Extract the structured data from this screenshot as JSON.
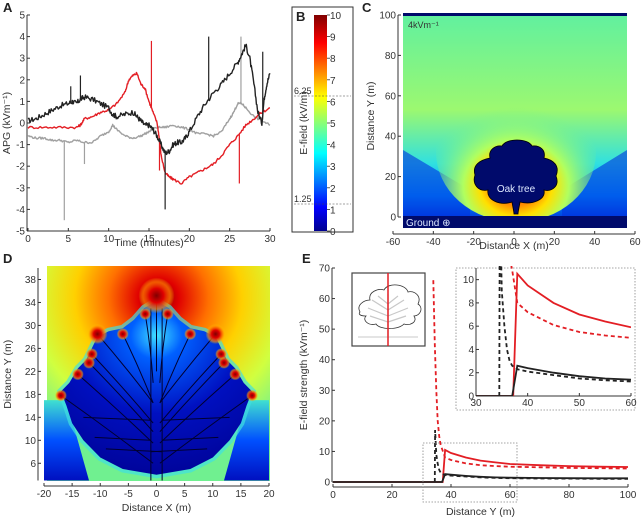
{
  "chart_data": [
    {
      "panel": "A",
      "type": "line",
      "xlabel": "Time (minutes)",
      "ylabel": "APG (kVm⁻¹)",
      "xlim": [
        0,
        30
      ],
      "ylim": [
        -5,
        5
      ],
      "xticks": [
        0,
        5,
        10,
        15,
        20,
        25,
        30
      ],
      "yticks": [
        -5,
        -4,
        -3,
        -2,
        -1,
        0,
        1,
        2,
        3,
        4,
        5
      ],
      "series": [
        {
          "name": "black",
          "color": "#222222",
          "x": [
            0,
            1,
            2,
            3,
            4,
            5,
            5.5,
            6,
            6.5,
            7,
            8,
            9,
            10,
            10.5,
            11,
            12,
            13,
            13.5,
            14,
            14.5,
            15,
            15.5,
            16,
            16.5,
            17,
            17.5,
            18,
            18.5,
            19,
            19.5,
            20,
            21,
            22,
            23,
            24,
            25,
            26,
            26.5,
            27,
            27.5,
            28,
            28.5,
            29,
            29.3,
            29.6,
            30
          ],
          "y": [
            0.1,
            0.2,
            0.4,
            0.6,
            0.8,
            0.9,
            1.0,
            0.9,
            1.1,
            1.2,
            1.1,
            0.9,
            0.7,
            0.4,
            0.3,
            0.4,
            0.5,
            0.3,
            0.1,
            -0.1,
            -0.1,
            -0.3,
            -0.6,
            -1.0,
            -1.4,
            -1.3,
            -1.0,
            -0.9,
            -0.9,
            -0.7,
            -0.4,
            0.3,
            0.9,
            1.4,
            1.8,
            2.3,
            2.8,
            3.2,
            3.6,
            3.0,
            1.8,
            0.5,
            0.0,
            1.2,
            1.8,
            2.3
          ],
          "spikes": [
            {
              "x": 5.3,
              "y": 1.7
            },
            {
              "x": 6.5,
              "y": 2.2
            },
            {
              "x": 17,
              "y": -4.0
            },
            {
              "x": 22.4,
              "y": 4.0
            },
            {
              "x": 29.1,
              "y": 3.3
            }
          ]
        },
        {
          "name": "red",
          "color": "#e31e24",
          "x": [
            0,
            2,
            4,
            6,
            6.5,
            7,
            8,
            9,
            10,
            11,
            12,
            12.5,
            13,
            13.5,
            14,
            14.5,
            15,
            15.5,
            16,
            16.2,
            16.5,
            17,
            17.5,
            18,
            19,
            20,
            21,
            22,
            23,
            24,
            25,
            26,
            27,
            28,
            29,
            30
          ],
          "y": [
            -0.2,
            -0.2,
            -0.2,
            -0.2,
            -0.1,
            0.2,
            0.3,
            0.5,
            0.6,
            0.9,
            1.4,
            2.0,
            2.2,
            2.3,
            1.8,
            1.6,
            1.0,
            0.5,
            0.0,
            -0.5,
            -1.5,
            -2.3,
            -2.5,
            -2.6,
            -2.8,
            -2.5,
            -2.3,
            -2.1,
            -1.9,
            -1.5,
            -1.0,
            -0.6,
            -0.1,
            0.2,
            0.5,
            0.7
          ],
          "spikes": [
            {
              "x": 15.3,
              "y": 3.8
            },
            {
              "x": 26.2,
              "y": -2.8
            },
            {
              "x": 16.3,
              "y": -2.2
            }
          ]
        },
        {
          "name": "gray",
          "color": "#a0a0a0",
          "x": [
            0,
            1,
            2,
            3,
            4,
            5,
            6,
            7,
            8,
            9,
            10,
            10.5,
            11,
            12,
            13,
            14,
            15,
            16,
            17,
            18,
            19,
            20,
            21,
            22,
            23,
            24,
            25,
            25.5,
            26,
            26.5,
            27,
            28,
            29,
            30
          ],
          "y": [
            -0.6,
            -0.7,
            -0.7,
            -0.8,
            -0.8,
            -0.9,
            -0.8,
            -0.9,
            -0.9,
            -0.6,
            -0.4,
            -0.1,
            -0.3,
            -0.6,
            -0.7,
            -0.6,
            -0.4,
            -0.2,
            -0.2,
            -0.1,
            -0.2,
            -0.3,
            -0.5,
            -0.5,
            -0.6,
            -0.4,
            0.2,
            0.5,
            0.9,
            0.9,
            0.7,
            0.3,
            0.1,
            -0.1
          ],
          "spikes": [
            {
              "x": 4.5,
              "y": -4.5
            },
            {
              "x": 7,
              "y": -1.9
            },
            {
              "x": 26.4,
              "y": 4.0
            }
          ]
        }
      ]
    },
    {
      "panel": "B",
      "type": "heatmap",
      "title": "",
      "ylabel": "E-field (kV/m)",
      "colorbar_range": [
        0,
        10
      ],
      "ticks": [
        0,
        1,
        2,
        3,
        4,
        5,
        6,
        7,
        8,
        9,
        10
      ],
      "annotations": [
        {
          "value": 6.25,
          "label": "6.25"
        },
        {
          "value": 1.25,
          "label": "1.25"
        }
      ]
    },
    {
      "panel": "C",
      "type": "heatmap",
      "xlabel": "Distance X (m)",
      "ylabel": "Distance Y (m)",
      "xlim": [
        -60,
        60
      ],
      "ylim": [
        0,
        100
      ],
      "xticks": [
        -60,
        -40,
        -20,
        0,
        20,
        40,
        60
      ],
      "yticks": [
        0,
        20,
        40,
        60,
        80,
        100
      ],
      "annotations": [
        "4kVm⁻¹",
        "Oak tree",
        "Ground ⊕"
      ],
      "field_background_kVm": 4
    },
    {
      "panel": "D",
      "type": "heatmap",
      "xlabel": "Distance X (m)",
      "ylabel": "Distance Y (m)",
      "xlim": [
        -20,
        20
      ],
      "ylim": [
        3,
        40
      ],
      "xticks": [
        -20,
        -15,
        -10,
        -5,
        0,
        5,
        10,
        15,
        20
      ],
      "yticks": [
        6,
        10,
        14,
        18,
        22,
        26,
        30,
        34,
        38
      ],
      "branch_tips": [
        [
          0,
          34
        ],
        [
          -2,
          32
        ],
        [
          2,
          32
        ],
        [
          -6,
          28.5
        ],
        [
          6,
          28.5
        ],
        [
          -10.5,
          28.5
        ],
        [
          10.5,
          28.5
        ],
        [
          -11.5,
          25
        ],
        [
          11.5,
          25
        ],
        [
          -12,
          23.5
        ],
        [
          12,
          23.5
        ],
        [
          -14,
          21.5
        ],
        [
          14,
          21.5
        ],
        [
          -17,
          17.8
        ],
        [
          17,
          17.8
        ]
      ]
    },
    {
      "panel": "E",
      "type": "line",
      "xlabel": "Distance Y (m)",
      "ylabel": "E-field strength (kVm⁻¹)",
      "xlim": [
        0,
        100
      ],
      "ylim": [
        0,
        70
      ],
      "xticks": [
        0,
        20,
        40,
        60,
        80,
        100
      ],
      "yticks": [
        0,
        10,
        20,
        30,
        40,
        50,
        60,
        70
      ],
      "series": [
        {
          "name": "red solid",
          "color": "#e31e24",
          "dash": false,
          "x": [
            0,
            37,
            37.2,
            38,
            40,
            45,
            50,
            55,
            60,
            70,
            80,
            90,
            100
          ],
          "y": [
            0,
            0,
            0,
            10.5,
            9.5,
            8.0,
            7.0,
            6.4,
            5.9,
            5.5,
            5.2,
            5.0,
            4.9
          ]
        },
        {
          "name": "red dashed",
          "color": "#e31e24",
          "dash": true,
          "x": [
            34,
            34.5,
            35,
            35.5,
            36,
            36.5,
            37,
            38,
            40,
            45,
            50,
            55,
            60,
            70,
            80,
            90,
            100
          ],
          "y": [
            66,
            45,
            30,
            20,
            15,
            12,
            10.8,
            8.0,
            7.2,
            6.1,
            5.5,
            5.2,
            5.0,
            4.8,
            4.6,
            4.5,
            4.4
          ]
        },
        {
          "name": "black solid",
          "color": "#222222",
          "dash": false,
          "x": [
            0,
            37,
            38,
            40,
            45,
            50,
            55,
            60,
            70,
            80,
            90,
            100
          ],
          "y": [
            0,
            0,
            2.6,
            2.4,
            2.0,
            1.7,
            1.5,
            1.4,
            1.3,
            1.25,
            1.2,
            1.2
          ]
        },
        {
          "name": "black dashed",
          "color": "#222222",
          "dash": true,
          "x": [
            34.5,
            34.6,
            35,
            35.5,
            36,
            36.5,
            37,
            38,
            40,
            45,
            50,
            55,
            60,
            70,
            80,
            90,
            100
          ],
          "y": [
            0,
            17,
            9,
            6,
            4,
            3,
            2.6,
            2.3,
            2.1,
            1.8,
            1.5,
            1.35,
            1.25,
            1.15,
            1.1,
            1.05,
            1.0
          ]
        }
      ],
      "inset": {
        "xlim": [
          30,
          60
        ],
        "ylim": [
          0,
          11
        ],
        "xticks": [
          30,
          40,
          50,
          60
        ],
        "yticks": [
          0,
          2,
          4,
          6,
          8,
          10
        ]
      }
    }
  ],
  "labels": {
    "A": "A",
    "B": "B",
    "C": "C",
    "D": "D",
    "E": "E"
  }
}
